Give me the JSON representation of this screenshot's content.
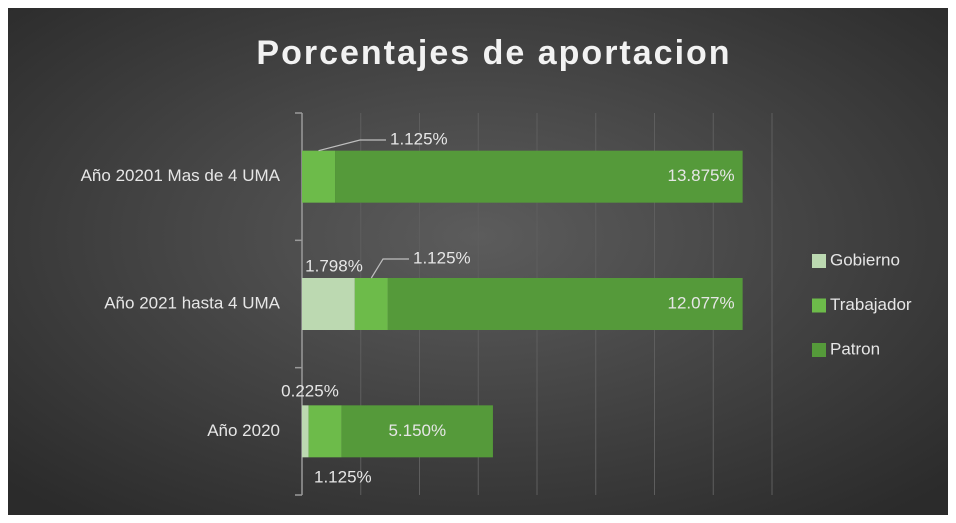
{
  "chart_data": {
    "type": "stacked-bar-horizontal",
    "title": "Porcentajes de aportacion",
    "categories": [
      "Año 20201 Mas de 4 UMA",
      "Año 2021 hasta 4 UMA",
      "Año 2020"
    ],
    "series": [
      {
        "name": "Gobierno",
        "color": "#bcd9b1",
        "values": [
          0,
          1.798,
          0.225
        ],
        "value_labels": [
          null,
          "1.798%",
          "0.225%"
        ]
      },
      {
        "name": "Trabajador",
        "color": "#6dbb4a",
        "values": [
          1.125,
          1.125,
          1.125
        ],
        "value_labels": [
          "1.125%",
          "1.125%",
          "1.125%"
        ]
      },
      {
        "name": "Patron",
        "color": "#559a3a",
        "values": [
          13.875,
          12.077,
          5.15
        ],
        "value_labels": [
          "13.875%",
          "12.077%",
          "5.150%"
        ]
      }
    ],
    "xlim": [
      0,
      16
    ],
    "xticks": [
      0,
      2,
      4,
      6,
      8,
      10,
      12,
      14,
      16
    ],
    "grid": true,
    "legend": "right"
  }
}
